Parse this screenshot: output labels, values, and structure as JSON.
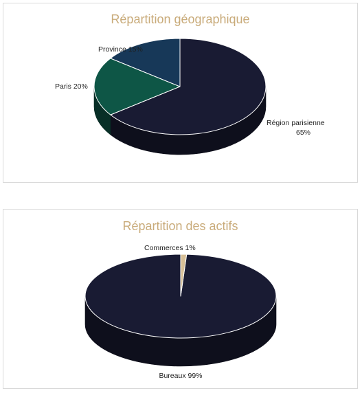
{
  "chart_data": [
    {
      "type": "pie",
      "title": "Répartition géographique",
      "slices": [
        {
          "label": "Région parisienne",
          "value": 65,
          "value_label": "65%",
          "color": "#191b33"
        },
        {
          "label": "Paris",
          "value": 20,
          "value_label": "20%",
          "color": "#0e5646"
        },
        {
          "label": "Province",
          "value": 15,
          "value_label": "15%",
          "color": "#173858"
        }
      ],
      "style": "3d"
    },
    {
      "type": "pie",
      "title": "Répartition des actifs",
      "slices": [
        {
          "label": "Bureaux",
          "value": 99,
          "value_label": "99%",
          "color": "#191b33"
        },
        {
          "label": "Commerces",
          "value": 1,
          "value_label": "1%",
          "color": "#d7bf96"
        }
      ],
      "style": "3d"
    }
  ],
  "colors": {
    "title": "#c9ab7a",
    "panel_border": "#d9d9d9"
  }
}
